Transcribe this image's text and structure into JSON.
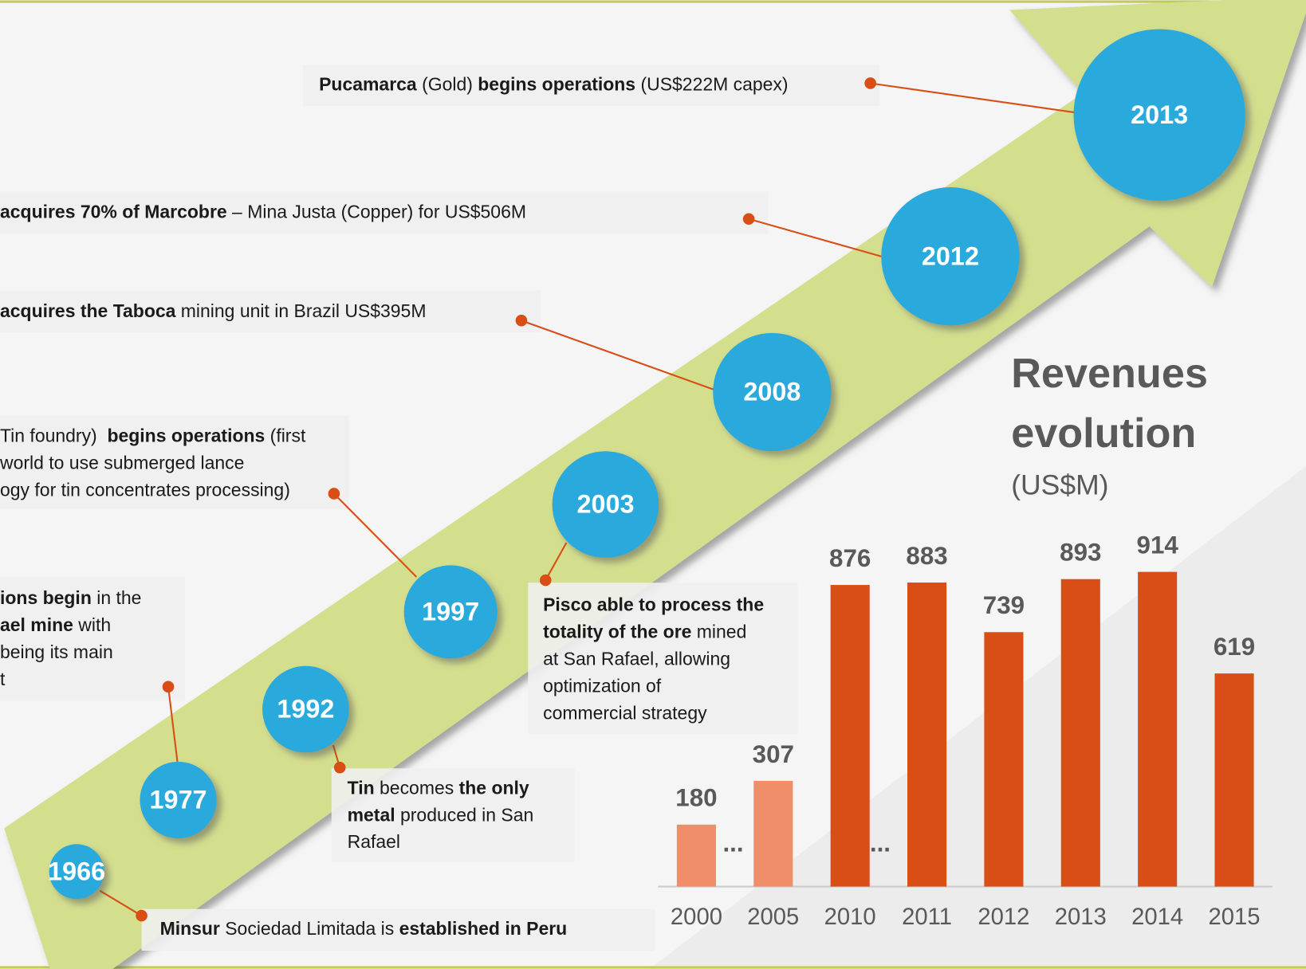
{
  "timeline": {
    "events": [
      {
        "year": "2013",
        "lines": [
          [
            {
              "text": "Pucamarca",
              "bold": true
            },
            {
              "text": " (Gold) ",
              "bold": false
            },
            {
              "text": "begins operations",
              "bold": true
            },
            {
              "text": " (US$222M capex)",
              "bold": false
            }
          ]
        ]
      },
      {
        "year": "2012",
        "lines": [
          [
            {
              "text": "acquires 70% of Marcobre",
              "bold": true
            },
            {
              "text": " – Mina Justa (Copper) for US$506M",
              "bold": false
            }
          ]
        ]
      },
      {
        "year": "2008",
        "lines": [
          [
            {
              "text": "acquires the Taboca",
              "bold": true
            },
            {
              "text": " mining unit in Brazil US$395M",
              "bold": false
            }
          ]
        ]
      },
      {
        "year": "1997",
        "lines": [
          [
            {
              "text": "Tin foundry)  ",
              "bold": false
            },
            {
              "text": "begins operations",
              "bold": true
            },
            {
              "text": " (first",
              "bold": false
            }
          ],
          [
            {
              "text": "world to use submerged lance",
              "bold": false
            }
          ],
          [
            {
              "text": "ogy for tin concentrates processing)",
              "bold": false
            }
          ]
        ]
      },
      {
        "year": "1977",
        "lines": [
          [
            {
              "text": "ions begin",
              "bold": true
            },
            {
              "text": " in the",
              "bold": false
            }
          ],
          [
            {
              "text": "ael mine",
              "bold": true
            },
            {
              "text": " with",
              "bold": false
            }
          ],
          [
            {
              "text": "being its main",
              "bold": false
            }
          ],
          [
            {
              "text": "t",
              "bold": false
            }
          ]
        ]
      },
      {
        "year": "1992",
        "lines": [
          [
            {
              "text": "Tin",
              "bold": true
            },
            {
              "text": " becomes ",
              "bold": false
            },
            {
              "text": "the only",
              "bold": true
            }
          ],
          [
            {
              "text": "metal",
              "bold": true
            },
            {
              "text": " produced in San",
              "bold": false
            }
          ],
          [
            {
              "text": "Rafael",
              "bold": false
            }
          ]
        ]
      },
      {
        "year": "2003",
        "lines": [
          [
            {
              "text": "Pisco able to process the",
              "bold": true
            }
          ],
          [
            {
              "text": "totality of the ore",
              "bold": true
            },
            {
              "text": " mined",
              "bold": false
            }
          ],
          [
            {
              "text": "at San Rafael, allowing",
              "bold": false
            }
          ],
          [
            {
              "text": "optimization of",
              "bold": false
            }
          ],
          [
            {
              "text": "commercial strategy",
              "bold": false
            }
          ]
        ]
      },
      {
        "year": "1966",
        "lines": [
          [
            {
              "text": "Minsur",
              "bold": true
            },
            {
              "text": " Sociedad Limitada is ",
              "bold": false
            },
            {
              "text": "established in Peru",
              "bold": true
            }
          ]
        ]
      }
    ]
  },
  "chart_data": {
    "type": "bar",
    "title": [
      "Revenues",
      "evolution"
    ],
    "subtitle": "(US$M)",
    "categories": [
      "2000",
      "2005",
      "2010",
      "2011",
      "2012",
      "2013",
      "2014",
      "2015"
    ],
    "values": [
      180,
      307,
      876,
      883,
      739,
      893,
      914,
      619
    ],
    "colors": [
      "#f08e6a",
      "#f08e6a",
      "#d84e16",
      "#d84e16",
      "#d84e16",
      "#d84e16",
      "#d84e16",
      "#d84e16"
    ],
    "annotations": [
      "...",
      "..."
    ],
    "ylim": [
      0,
      1000
    ]
  }
}
